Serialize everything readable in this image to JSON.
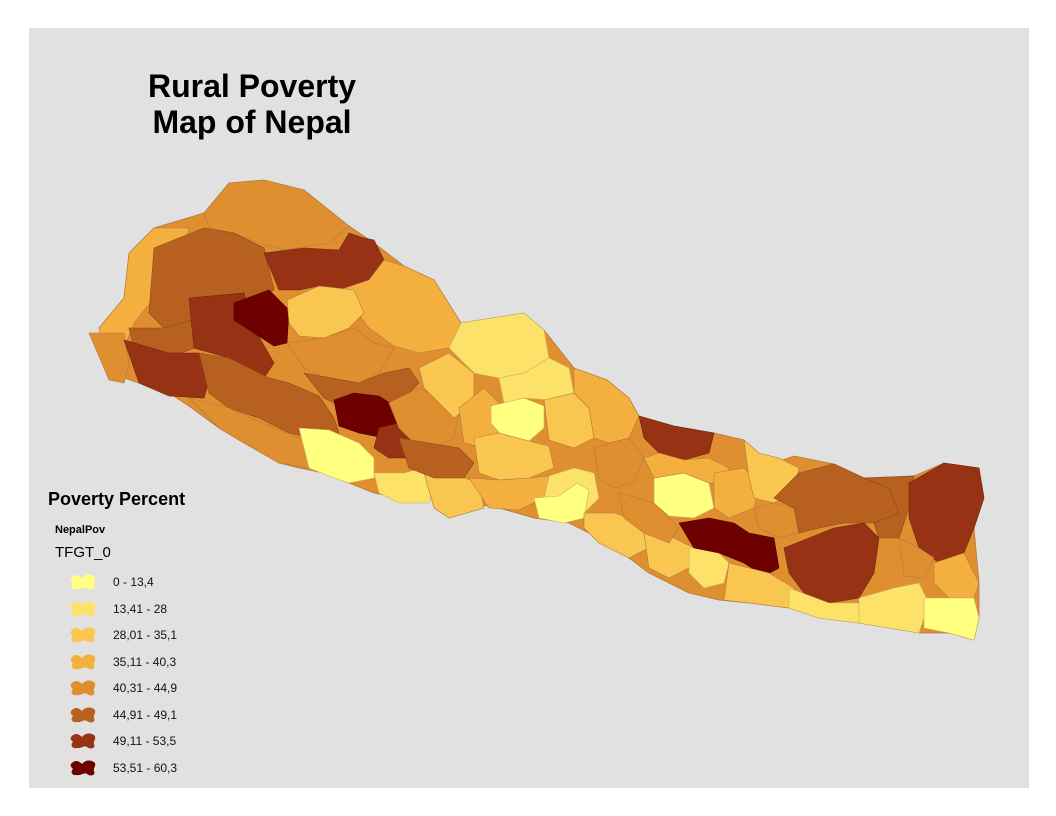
{
  "title": {
    "line1": "Rural Poverty",
    "line2": "Map of Nepal"
  },
  "legend": {
    "title": "Poverty Percent",
    "layer": "NepalPov",
    "field": "TFGT_0",
    "classes": [
      {
        "label": "0 - 13,4",
        "color": "#ffff80"
      },
      {
        "label": "13,41 - 28",
        "color": "#fde26a"
      },
      {
        "label": "28,01 - 35,1",
        "color": "#f9c650"
      },
      {
        "label": "35,11 - 40,3",
        "color": "#f4b03e"
      },
      {
        "label": "40,31 - 44,9",
        "color": "#df8f2f"
      },
      {
        "label": "44,91 - 49,1",
        "color": "#b86020"
      },
      {
        "label": "49,11 - 53,5",
        "color": "#973314"
      },
      {
        "label": "53,51 - 60,3",
        "color": "#6e0000"
      }
    ]
  }
}
